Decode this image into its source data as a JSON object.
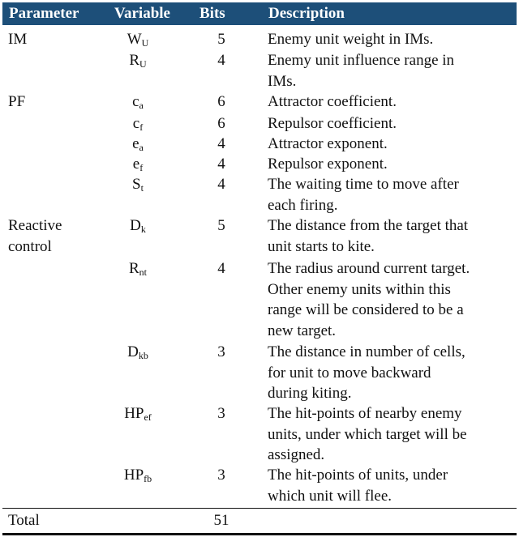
{
  "table": {
    "headers": {
      "parameter": "Parameter",
      "variable": "Variable",
      "bits": "Bits",
      "description": "Description"
    },
    "groups": [
      {
        "label_lines": [
          "IM"
        ]
      },
      {
        "label_lines": [
          "PF"
        ]
      },
      {
        "label_lines": [
          "Reactive",
          "control"
        ]
      }
    ],
    "rows": [
      {
        "var_main": "W",
        "var_sub": "U",
        "bits": "5",
        "desc_lines": [
          "Enemy unit weight in IMs."
        ]
      },
      {
        "var_main": "R",
        "var_sub": "U",
        "bits": "4",
        "desc_lines": [
          "Enemy unit influence range in",
          "IMs."
        ]
      },
      {
        "var_main": "c",
        "var_sub": "a",
        "bits": "6",
        "desc_lines": [
          "Attractor coefficient."
        ]
      },
      {
        "var_main": "c",
        "var_sub": "f",
        "bits": "6",
        "desc_lines": [
          "Repulsor coefficient."
        ]
      },
      {
        "var_main": "e",
        "var_sub": "a",
        "bits": "4",
        "desc_lines": [
          "Attractor exponent."
        ]
      },
      {
        "var_main": "e",
        "var_sub": "f",
        "bits": "4",
        "desc_lines": [
          "Repulsor exponent."
        ]
      },
      {
        "var_main": "S",
        "var_sub": "t",
        "bits": "4",
        "desc_lines": [
          "The waiting time to move after",
          "each firing."
        ]
      },
      {
        "var_main": "D",
        "var_sub": "k",
        "bits": "5",
        "desc_lines": [
          "The distance from the target that",
          "unit starts to kite."
        ]
      },
      {
        "var_main": "R",
        "var_sub": "nt",
        "bits": "4",
        "desc_lines": [
          "The radius around current target.",
          "Other enemy units within this",
          "range will be considered to be a",
          "new target."
        ]
      },
      {
        "var_main": "D",
        "var_sub": "kb",
        "bits": "3",
        "desc_lines": [
          "The distance in number of cells,",
          "for unit to move backward",
          "during kiting."
        ]
      },
      {
        "var_main": "HP",
        "var_sub": "ef",
        "bits": "3",
        "desc_lines": [
          "The hit-points of nearby enemy",
          "units, under which target will be",
          "assigned."
        ]
      },
      {
        "var_main": "HP",
        "var_sub": "fb",
        "bits": "3",
        "desc_lines": [
          "The hit-points of units, under",
          "which unit will flee."
        ]
      }
    ],
    "total": {
      "label": "Total",
      "bits": "51"
    }
  }
}
